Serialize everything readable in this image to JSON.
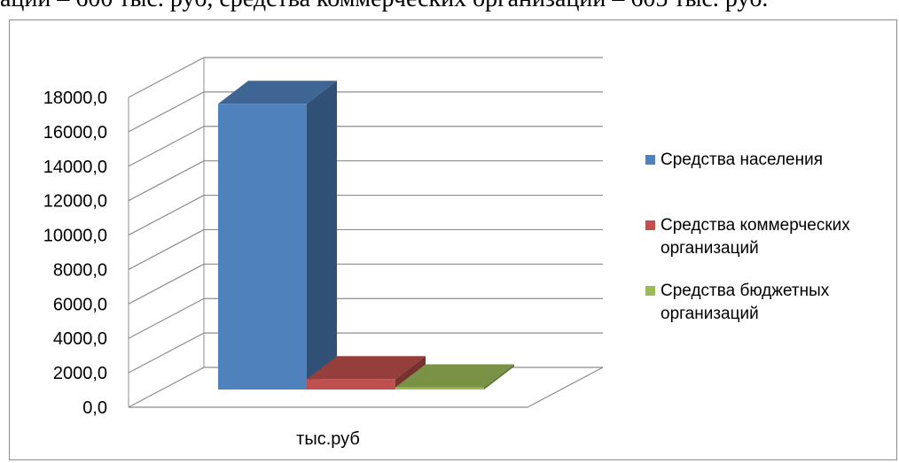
{
  "top_clipped_text": "ации – 600 тыс. руб, средства коммерческих организаций – 605 тыс. руб.",
  "colors": {
    "series1": "#4F81BD",
    "series2": "#C0504D",
    "series3": "#9BBB59"
  },
  "chart_data": {
    "type": "bar",
    "subtype": "3d-column",
    "categories": [
      "тыс.руб"
    ],
    "series": [
      {
        "name": "Средства населения",
        "values": [
          16600
        ]
      },
      {
        "name": "Средства коммерческих организаций",
        "values": [
          605
        ]
      },
      {
        "name": "Средства бюджетных организаций",
        "values": [
          130
        ]
      }
    ],
    "y_ticks": [
      "0,0",
      "2000,0",
      "4000,0",
      "6000,0",
      "8000,0",
      "10000,0",
      "12000,0",
      "14000,0",
      "16000,0",
      "18000,0"
    ],
    "ylim": [
      0,
      18000
    ],
    "grid": true,
    "legend_position": "right",
    "title": "",
    "xlabel": "",
    "ylabel": ""
  },
  "legend": {
    "items": [
      {
        "label": "Средства населения"
      },
      {
        "label": "Средства коммерческих организаций"
      },
      {
        "label": "Средства бюджетных организаций"
      }
    ]
  }
}
